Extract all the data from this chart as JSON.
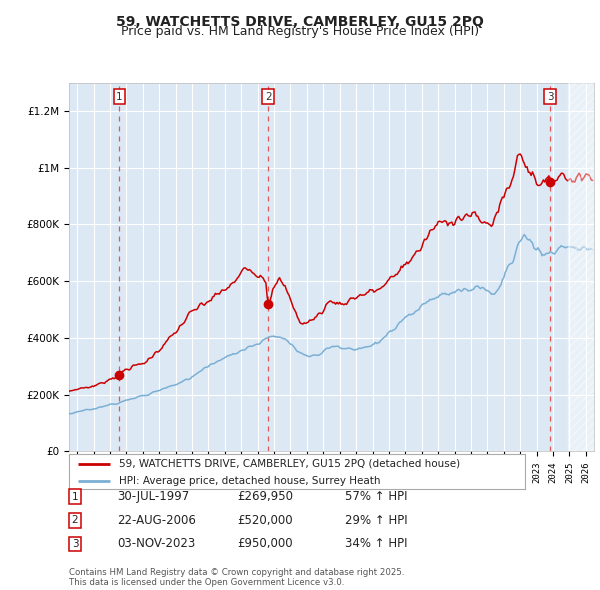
{
  "title": "59, WATCHETTS DRIVE, CAMBERLEY, GU15 2PQ",
  "subtitle": "Price paid vs. HM Land Registry's House Price Index (HPI)",
  "legend_line1": "59, WATCHETTS DRIVE, CAMBERLEY, GU15 2PQ (detached house)",
  "legend_line2": "HPI: Average price, detached house, Surrey Heath",
  "sale_color": "#cc0000",
  "hpi_color": "#7bafd4",
  "background_chart": "#dce9f5",
  "background_fig": "#ffffff",
  "grid_color": "#ffffff",
  "ylim": [
    0,
    1300000
  ],
  "yticks": [
    0,
    200000,
    400000,
    600000,
    800000,
    1000000,
    1200000
  ],
  "ytick_labels": [
    "£0",
    "£200K",
    "£400K",
    "£600K",
    "£800K",
    "£1M",
    "£1.2M"
  ],
  "xlim_start": 1994.5,
  "xlim_end": 2026.5,
  "hatch_start": 2024.92,
  "sales": [
    {
      "date": 1997.575,
      "price": 269950,
      "label": "1"
    },
    {
      "date": 2006.64,
      "price": 520000,
      "label": "2"
    },
    {
      "date": 2023.84,
      "price": 950000,
      "label": "3"
    }
  ],
  "sale_info": [
    {
      "num": "1",
      "date": "30-JUL-1997",
      "price": "£269,950",
      "change": "57% ↑ HPI"
    },
    {
      "num": "2",
      "date": "22-AUG-2006",
      "price": "£520,000",
      "change": "29% ↑ HPI"
    },
    {
      "num": "3",
      "date": "03-NOV-2023",
      "price": "£950,000",
      "change": "34% ↑ HPI"
    }
  ],
  "footer": "Contains HM Land Registry data © Crown copyright and database right 2025.\nThis data is licensed under the Open Government Licence v3.0.",
  "title_fontsize": 10,
  "subtitle_fontsize": 9,
  "axis_fontsize": 7,
  "legend_fontsize": 8,
  "table_fontsize": 8.5
}
